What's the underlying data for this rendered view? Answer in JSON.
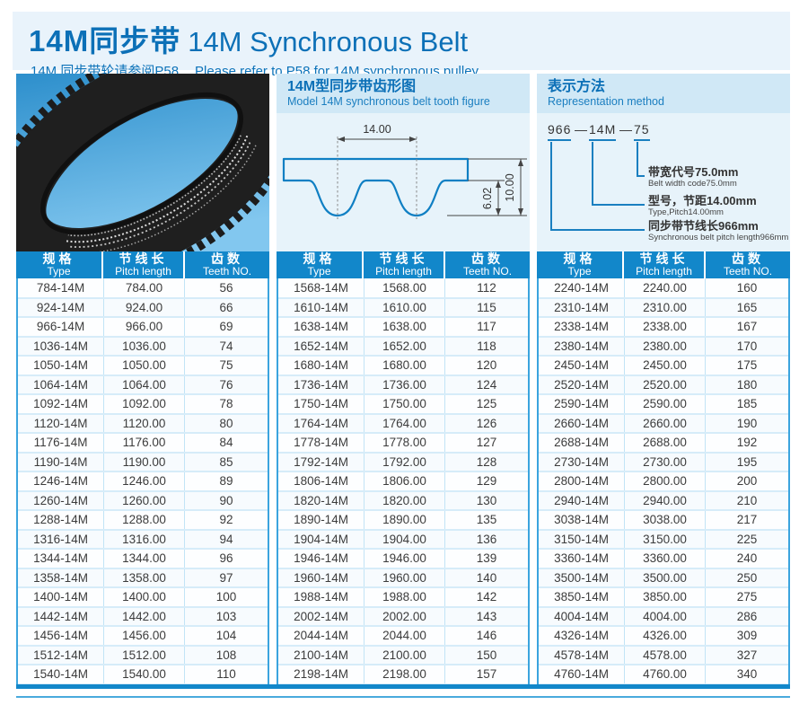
{
  "header": {
    "title_cn": "14M同步带",
    "title_en": "14M Synchronous Belt",
    "subtitle_cn": "14M 同步带轮请参阅P58",
    "subtitle_en": "Please refer to P58 for 14M synchronous pulley."
  },
  "tooth_figure": {
    "title_cn": "14M型同步带齿形图",
    "title_en": "Model 14M synchronous belt tooth figure",
    "pitch_label": "14.00",
    "tooth_height_label": "6.02",
    "thickness_label": "10.00"
  },
  "representation": {
    "title_cn": "表示方法",
    "title_en": "Representation method",
    "code_pitch_length": "966",
    "code_type": "14M",
    "code_width": "75",
    "dash": "—",
    "callouts": [
      {
        "cn": "带宽代号75.0mm",
        "en": "Belt width code75.0mm"
      },
      {
        "cn": "型号，节距14.00mm",
        "en": "Type,Pitch14.00mm"
      },
      {
        "cn": "同步带节线长966mm",
        "en": "Synchronous belt pitch length966mm"
      }
    ]
  },
  "table_header": {
    "type_cn": "规格",
    "type_en": "Type",
    "pitch_cn": "节线长",
    "pitch_en": "Pitch length",
    "teeth_cn": "齿数",
    "teeth_en": "Teeth NO."
  },
  "belt_tables": [
    {
      "rows": [
        [
          "784-14M",
          "784.00",
          "56"
        ],
        [
          "924-14M",
          "924.00",
          "66"
        ],
        [
          "966-14M",
          "966.00",
          "69"
        ],
        [
          "1036-14M",
          "1036.00",
          "74"
        ],
        [
          "1050-14M",
          "1050.00",
          "75"
        ],
        [
          "1064-14M",
          "1064.00",
          "76"
        ],
        [
          "1092-14M",
          "1092.00",
          "78"
        ],
        [
          "1120-14M",
          "1120.00",
          "80"
        ],
        [
          "1176-14M",
          "1176.00",
          "84"
        ],
        [
          "1190-14M",
          "1190.00",
          "85"
        ],
        [
          "1246-14M",
          "1246.00",
          "89"
        ],
        [
          "1260-14M",
          "1260.00",
          "90"
        ],
        [
          "1288-14M",
          "1288.00",
          "92"
        ],
        [
          "1316-14M",
          "1316.00",
          "94"
        ],
        [
          "1344-14M",
          "1344.00",
          "96"
        ],
        [
          "1358-14M",
          "1358.00",
          "97"
        ],
        [
          "1400-14M",
          "1400.00",
          "100"
        ],
        [
          "1442-14M",
          "1442.00",
          "103"
        ],
        [
          "1456-14M",
          "1456.00",
          "104"
        ],
        [
          "1512-14M",
          "1512.00",
          "108"
        ],
        [
          "1540-14M",
          "1540.00",
          "110"
        ]
      ]
    },
    {
      "rows": [
        [
          "1568-14M",
          "1568.00",
          "112"
        ],
        [
          "1610-14M",
          "1610.00",
          "115"
        ],
        [
          "1638-14M",
          "1638.00",
          "117"
        ],
        [
          "1652-14M",
          "1652.00",
          "118"
        ],
        [
          "1680-14M",
          "1680.00",
          "120"
        ],
        [
          "1736-14M",
          "1736.00",
          "124"
        ],
        [
          "1750-14M",
          "1750.00",
          "125"
        ],
        [
          "1764-14M",
          "1764.00",
          "126"
        ],
        [
          "1778-14M",
          "1778.00",
          "127"
        ],
        [
          "1792-14M",
          "1792.00",
          "128"
        ],
        [
          "1806-14M",
          "1806.00",
          "129"
        ],
        [
          "1820-14M",
          "1820.00",
          "130"
        ],
        [
          "1890-14M",
          "1890.00",
          "135"
        ],
        [
          "1904-14M",
          "1904.00",
          "136"
        ],
        [
          "1946-14M",
          "1946.00",
          "139"
        ],
        [
          "1960-14M",
          "1960.00",
          "140"
        ],
        [
          "1988-14M",
          "1988.00",
          "142"
        ],
        [
          "2002-14M",
          "2002.00",
          "143"
        ],
        [
          "2044-14M",
          "2044.00",
          "146"
        ],
        [
          "2100-14M",
          "2100.00",
          "150"
        ],
        [
          "2198-14M",
          "2198.00",
          "157"
        ]
      ]
    },
    {
      "rows": [
        [
          "2240-14M",
          "2240.00",
          "160"
        ],
        [
          "2310-14M",
          "2310.00",
          "165"
        ],
        [
          "2338-14M",
          "2338.00",
          "167"
        ],
        [
          "2380-14M",
          "2380.00",
          "170"
        ],
        [
          "2450-14M",
          "2450.00",
          "175"
        ],
        [
          "2520-14M",
          "2520.00",
          "180"
        ],
        [
          "2590-14M",
          "2590.00",
          "185"
        ],
        [
          "2660-14M",
          "2660.00",
          "190"
        ],
        [
          "2688-14M",
          "2688.00",
          "192"
        ],
        [
          "2730-14M",
          "2730.00",
          "195"
        ],
        [
          "2800-14M",
          "2800.00",
          "200"
        ],
        [
          "2940-14M",
          "2940.00",
          "210"
        ],
        [
          "3038-14M",
          "3038.00",
          "217"
        ],
        [
          "3150-14M",
          "3150.00",
          "225"
        ],
        [
          "3360-14M",
          "3360.00",
          "240"
        ],
        [
          "3500-14M",
          "3500.00",
          "250"
        ],
        [
          "3850-14M",
          "3850.00",
          "275"
        ],
        [
          "4004-14M",
          "4004.00",
          "286"
        ],
        [
          "4326-14M",
          "4326.00",
          "309"
        ],
        [
          "4578-14M",
          "4578.00",
          "327"
        ],
        [
          "4760-14M",
          "4760.00",
          "340"
        ]
      ]
    }
  ],
  "colors": {
    "accent": "#1287ca",
    "title_blue": "#0c70b7",
    "band_bg": "#e9f3fb",
    "panel_header_bg": "#d0e8f6",
    "panel_body_bg": "#e7f3fa",
    "diagram_stroke": "#0f7fc3",
    "callout_line": "#1a7fc0",
    "table_edge": "#3ba4de"
  }
}
